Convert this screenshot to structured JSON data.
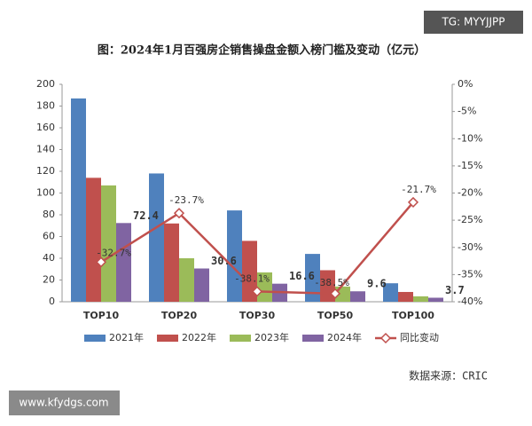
{
  "overlays": {
    "watermark": "TG: MYYJJPP",
    "site": "www.kfydgs.com"
  },
  "chart_data": {
    "type": "bar",
    "title": "图：2024年1月百强房企销售操盘金额入榜门槛及变动（亿元）",
    "source": "数据来源：CRIC",
    "categories": [
      "TOP10",
      "TOP20",
      "TOP30",
      "TOP50",
      "TOP100"
    ],
    "series": [
      {
        "name": "2021年",
        "color": "#4f81bd",
        "values": [
          187,
          118,
          84,
          44,
          17
        ]
      },
      {
        "name": "2022年",
        "color": "#c0504d",
        "values": [
          114,
          72,
          56,
          29,
          9
        ]
      },
      {
        "name": "2023年",
        "color": "#9bbb59",
        "values": [
          107,
          40,
          27,
          14,
          5
        ]
      },
      {
        "name": "2024年",
        "color": "#8064a2",
        "values": [
          72.4,
          30.6,
          16.6,
          9.6,
          3.7
        ],
        "show_labels": true
      },
      {
        "name": "同比变动",
        "type": "line",
        "axis": "y2",
        "color": "#c0504d",
        "values": [
          -32.7,
          -23.7,
          -38.1,
          -38.5,
          -21.7
        ],
        "value_labels": [
          "-32.7%",
          "-23.7%",
          "-38.1%",
          "-38.5%",
          "-21.7%"
        ],
        "show_labels": true
      }
    ],
    "ylim": [
      0,
      200
    ],
    "yticks": [
      0,
      20,
      40,
      60,
      80,
      100,
      120,
      140,
      160,
      180,
      200
    ],
    "y2lim": [
      -40,
      0
    ],
    "y2ticks": [
      {
        "value": 0,
        "label": "0%"
      },
      {
        "value": -5,
        "label": "-5%"
      },
      {
        "value": -10,
        "label": "-10%"
      },
      {
        "value": -15,
        "label": "-15%"
      },
      {
        "value": -20,
        "label": "-20%"
      },
      {
        "value": -25,
        "label": "-25%"
      },
      {
        "value": -30,
        "label": "-30%"
      },
      {
        "value": -35,
        "label": "-35%"
      },
      {
        "value": -40,
        "label": "-40%"
      }
    ],
    "grid": false,
    "legend": "bottom"
  }
}
